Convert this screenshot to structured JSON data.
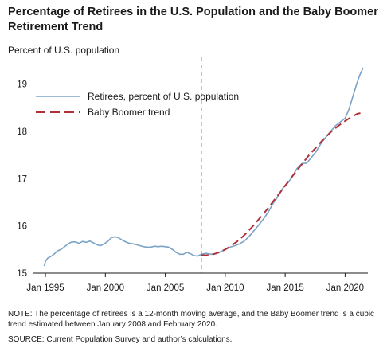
{
  "chart_data": {
    "type": "line",
    "title": "Percentage of Retirees in the U.S. Population and the Baby Boomer Retirement Trend",
    "ylabel": "Percent of U.S. population",
    "xlabel": "",
    "ylim": [
      15,
      19.5
    ],
    "xlim": [
      1994,
      2021.9
    ],
    "yticks": [
      15,
      16,
      17,
      18,
      19
    ],
    "xticks": [
      {
        "value": 1995,
        "label": "Jan 1995"
      },
      {
        "value": 2000,
        "label": "Jan 2000"
      },
      {
        "value": 2005,
        "label": "Jan 2005"
      },
      {
        "value": 2010,
        "label": "Jan 2010"
      },
      {
        "value": 2015,
        "label": "Jan 2015"
      },
      {
        "value": 2020,
        "label": "Jan 2020"
      }
    ],
    "vertical_marker": 2008,
    "legend_position": "top-left",
    "series": [
      {
        "name": "Retirees, percent of U.S. population",
        "style": "solid",
        "color": "#7ba3c6",
        "x": [
          1994.9,
          1995.0,
          1995.2,
          1995.5,
          1995.8,
          1996.0,
          1996.3,
          1996.6,
          1996.9,
          1997.2,
          1997.5,
          1997.8,
          1998.1,
          1998.4,
          1998.7,
          1999.0,
          1999.3,
          1999.6,
          1999.9,
          2000.2,
          2000.5,
          2000.8,
          2001.1,
          2001.4,
          2001.7,
          2002.0,
          2002.3,
          2002.6,
          2002.9,
          2003.2,
          2003.5,
          2003.8,
          2004.1,
          2004.4,
          2004.7,
          2005.0,
          2005.3,
          2005.6,
          2005.9,
          2006.2,
          2006.5,
          2006.8,
          2007.1,
          2007.4,
          2007.7,
          2008.0,
          2008.4,
          2008.8,
          2009.2,
          2009.6,
          2010.0,
          2010.4,
          2010.8,
          2011.2,
          2011.6,
          2012.0,
          2012.4,
          2012.8,
          2013.2,
          2013.6,
          2014.0,
          2014.4,
          2014.8,
          2015.2,
          2015.6,
          2016.0,
          2016.4,
          2016.8,
          2017.2,
          2017.6,
          2018.0,
          2018.4,
          2018.8,
          2019.2,
          2019.6,
          2020.0,
          2020.3,
          2020.6,
          2020.9,
          2021.2,
          2021.5
        ],
        "values": [
          15.15,
          15.25,
          15.32,
          15.36,
          15.42,
          15.47,
          15.5,
          15.56,
          15.62,
          15.66,
          15.66,
          15.63,
          15.67,
          15.65,
          15.68,
          15.64,
          15.6,
          15.58,
          15.62,
          15.67,
          15.75,
          15.77,
          15.75,
          15.7,
          15.66,
          15.63,
          15.62,
          15.6,
          15.58,
          15.56,
          15.55,
          15.55,
          15.57,
          15.56,
          15.57,
          15.56,
          15.55,
          15.5,
          15.44,
          15.4,
          15.4,
          15.44,
          15.41,
          15.37,
          15.36,
          15.4,
          15.42,
          15.4,
          15.41,
          15.45,
          15.5,
          15.55,
          15.58,
          15.62,
          15.68,
          15.78,
          15.9,
          16.02,
          16.15,
          16.3,
          16.48,
          16.62,
          16.8,
          16.9,
          17.05,
          17.22,
          17.32,
          17.33,
          17.45,
          17.58,
          17.75,
          17.88,
          18.0,
          18.12,
          18.2,
          18.28,
          18.45,
          18.7,
          18.95,
          19.18,
          19.35
        ]
      },
      {
        "name": "Baby Boomer trend",
        "style": "dashed",
        "color": "#b0303a",
        "x": [
          2008.0,
          2008.5,
          2009.0,
          2009.5,
          2010.0,
          2010.5,
          2011.0,
          2011.5,
          2012.0,
          2012.5,
          2013.0,
          2013.5,
          2014.0,
          2014.5,
          2015.0,
          2015.5,
          2016.0,
          2016.5,
          2017.0,
          2017.5,
          2018.0,
          2018.5,
          2019.0,
          2019.5,
          2020.0,
          2020.5,
          2021.0,
          2021.5
        ],
        "values": [
          15.38,
          15.38,
          15.4,
          15.44,
          15.5,
          15.58,
          15.67,
          15.78,
          15.91,
          16.05,
          16.2,
          16.35,
          16.52,
          16.68,
          16.85,
          17.02,
          17.18,
          17.34,
          17.5,
          17.64,
          17.78,
          17.91,
          18.03,
          18.13,
          18.22,
          18.3,
          18.37,
          18.4
        ]
      }
    ]
  },
  "note": "NOTE: The percentage of retirees is a 12-month moving average, and the Baby Boomer trend is a cubic trend estimated between January 2008 and February 2020.",
  "source": "SOURCE: Current Population Survey and author’s calculations."
}
